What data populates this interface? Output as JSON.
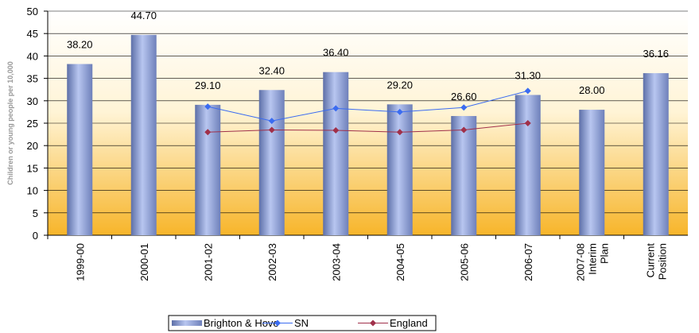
{
  "chart_data": {
    "type": "bar",
    "y_label": "Children or young people per 10,000",
    "categories": [
      "1999-00",
      "2000-01",
      "2001-02",
      "2002-03",
      "2003-04",
      "2004-05",
      "2005-06",
      "2006-07",
      "2007-08 Interim Plan",
      "Current Position"
    ],
    "series": [
      {
        "name": "Brighton & Hove",
        "type": "bar",
        "color": "#8c9fd6",
        "values": [
          38.2,
          44.7,
          29.1,
          32.4,
          36.4,
          29.2,
          26.6,
          31.3,
          28.0,
          36.16
        ],
        "value_labels": [
          "38.20",
          "44.70",
          "29.10",
          "32.40",
          "36.40",
          "29.20",
          "26.60",
          "31.30",
          "28.00",
          "36.16"
        ]
      },
      {
        "name": "SN",
        "type": "line",
        "color": "#3b6cf0",
        "values": [
          null,
          null,
          28.7,
          25.5,
          28.3,
          27.5,
          28.5,
          32.2,
          null,
          null
        ]
      },
      {
        "name": "England",
        "type": "line",
        "color": "#a0304a",
        "values": [
          null,
          null,
          23.0,
          23.5,
          23.4,
          23.0,
          23.5,
          25.0,
          null,
          null
        ]
      }
    ],
    "ylim": [
      0,
      50
    ],
    "yticks": [
      0,
      5,
      10,
      15,
      20,
      25,
      30,
      35,
      40,
      45,
      50
    ],
    "grid": true
  }
}
